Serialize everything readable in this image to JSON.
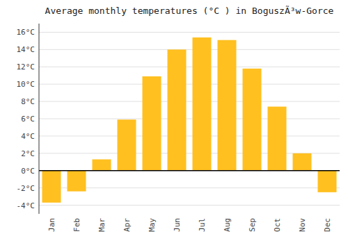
{
  "chart_data": {
    "type": "bar",
    "title": "Average monthly temperatures (°C ) in BoguszÃ³w-Gorce",
    "categories": [
      "Jan",
      "Feb",
      "Mar",
      "Apr",
      "May",
      "Jun",
      "Jul",
      "Aug",
      "Sep",
      "Oct",
      "Nov",
      "Dec"
    ],
    "values": [
      -3.7,
      -2.4,
      1.3,
      5.9,
      10.9,
      14.0,
      15.4,
      15.1,
      11.8,
      7.4,
      2.0,
      -2.5
    ],
    "color": "#FFC020",
    "ylim": [
      -5,
      17
    ],
    "yticks": [
      {
        "value": -4,
        "label": "-4°C"
      },
      {
        "value": -2,
        "label": "-2°C"
      },
      {
        "value": 0,
        "label": "0°C"
      },
      {
        "value": 2,
        "label": "2°C"
      },
      {
        "value": 4,
        "label": "4°C"
      },
      {
        "value": 6,
        "label": "6°C"
      },
      {
        "value": 8,
        "label": "8°C"
      },
      {
        "value": 10,
        "label": "10°C"
      },
      {
        "value": 12,
        "label": "12°C"
      },
      {
        "value": 14,
        "label": "14°C"
      },
      {
        "value": 16,
        "label": "16°C"
      }
    ],
    "grid": true
  }
}
